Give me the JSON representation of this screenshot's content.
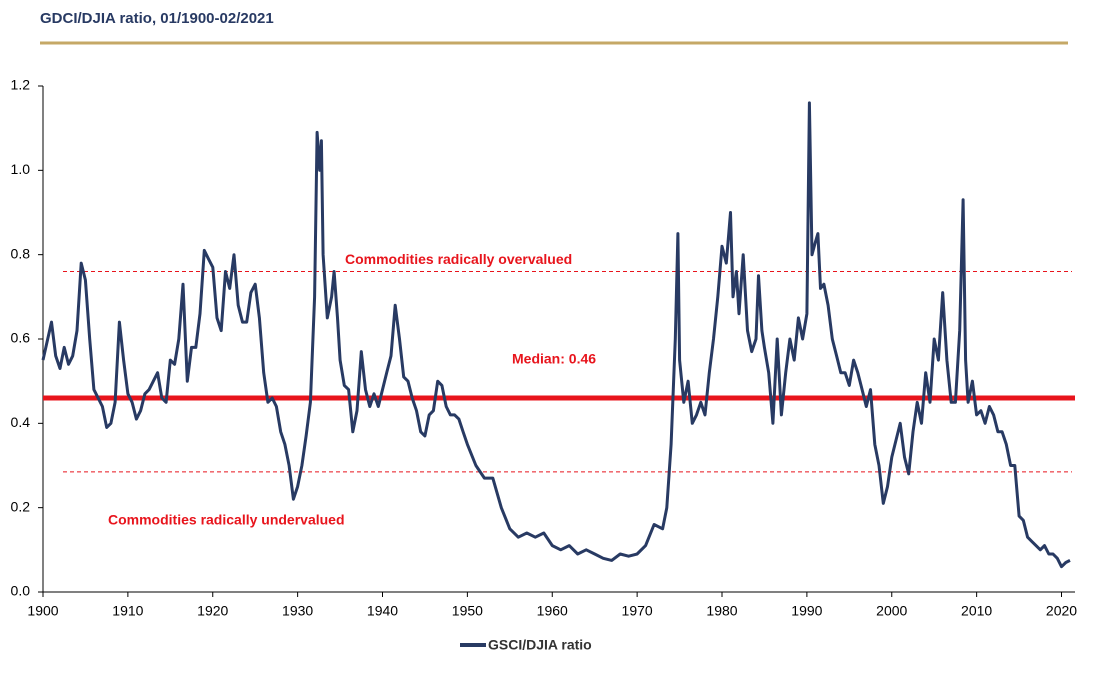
{
  "chart_data": {
    "type": "line",
    "title": "GDCI/DJIA ratio, 01/1900-02/2021",
    "xlim": [
      1900,
      2021
    ],
    "ylim": [
      0,
      1.2
    ],
    "xticks": [
      1900,
      1910,
      1920,
      1930,
      1940,
      1950,
      1960,
      1970,
      1980,
      1990,
      2000,
      2010,
      2020
    ],
    "yticks": [
      {
        "value": 0,
        "label": "0.0"
      },
      0.2,
      0.4,
      0.6,
      0.8,
      {
        "value": 1,
        "label": "1.0"
      },
      1.2
    ],
    "reference_lines": [
      {
        "value": 0.76,
        "label": "Commodities radically overvalued",
        "color": "#e8141c",
        "style": "dashed"
      },
      {
        "value": 0.46,
        "label": "Median: 0.46",
        "color": "#e8141c",
        "style": "solid"
      },
      {
        "value": 0.285,
        "label": "Commodities radically undervalued",
        "color": "#e8141c",
        "style": "dashed"
      }
    ],
    "x": [
      1900,
      1901,
      1901.5,
      1902,
      1902.5,
      1903,
      1903.5,
      1904,
      1904.5,
      1905,
      1905.5,
      1906,
      1907,
      1907.5,
      1908,
      1908.5,
      1909,
      1909.5,
      1910,
      1910.5,
      1911,
      1911.5,
      1912,
      1912.5,
      1913,
      1913.5,
      1914,
      1914.5,
      1915,
      1915.5,
      1916,
      1916.5,
      1917,
      1917.5,
      1918,
      1918.5,
      1919,
      1919.5,
      1920,
      1920.5,
      1921,
      1921.5,
      1922,
      1922.5,
      1923,
      1923.5,
      1924,
      1924.5,
      1925,
      1925.5,
      1926,
      1926.5,
      1927,
      1927.5,
      1928,
      1928.5,
      1929,
      1929.5,
      1930,
      1930.5,
      1931,
      1931.5,
      1932,
      1932.3,
      1932.6,
      1932.8,
      1933,
      1933.5,
      1934,
      1934.3,
      1934.7,
      1935,
      1935.5,
      1936,
      1936.5,
      1937,
      1937.5,
      1938,
      1938.5,
      1939,
      1939.5,
      1940,
      1940.5,
      1941,
      1941.5,
      1942,
      1942.5,
      1943,
      1943.5,
      1944,
      1944.5,
      1945,
      1945.5,
      1946,
      1946.5,
      1947,
      1947.5,
      1948,
      1948.5,
      1949,
      1949.5,
      1950,
      1951,
      1952,
      1953,
      1954,
      1955,
      1956,
      1957,
      1958,
      1959,
      1960,
      1961,
      1962,
      1963,
      1964,
      1965,
      1966,
      1967,
      1968,
      1969,
      1970,
      1971,
      1972,
      1973,
      1973.5,
      1974,
      1974.5,
      1974.8,
      1975,
      1975.5,
      1976,
      1976.5,
      1977,
      1977.5,
      1978,
      1978.5,
      1979,
      1979.5,
      1980,
      1980.5,
      1981,
      1981.3,
      1981.7,
      1982,
      1982.5,
      1983,
      1983.5,
      1984,
      1984.3,
      1984.7,
      1985,
      1985.5,
      1986,
      1986.5,
      1987,
      1987.5,
      1988,
      1988.5,
      1989,
      1989.5,
      1990,
      1990.3,
      1990.6,
      1991,
      1991.3,
      1991.6,
      1992,
      1992.5,
      1993,
      1993.5,
      1994,
      1994.5,
      1995,
      1995.5,
      1996,
      1996.5,
      1997,
      1997.5,
      1998,
      1998.5,
      1999,
      1999.5,
      2000,
      2000.5,
      2001,
      2001.5,
      2002,
      2002.5,
      2003,
      2003.5,
      2004,
      2004.5,
      2005,
      2005.5,
      2006,
      2006.5,
      2007,
      2007.5,
      2008,
      2008.4,
      2008.7,
      2009,
      2009.5,
      2010,
      2010.5,
      2011,
      2011.5,
      2012,
      2012.5,
      2013,
      2013.5,
      2014,
      2014.5,
      2015,
      2015.5,
      2016,
      2016.5,
      2017,
      2017.5,
      2018,
      2018.5,
      2019,
      2019.5,
      2020,
      2020.5,
      2021
    ],
    "series": [
      {
        "name": "GSCI/DJIA ratio",
        "color": "#283a63",
        "values": [
          0.55,
          0.64,
          0.56,
          0.53,
          0.58,
          0.54,
          0.56,
          0.62,
          0.78,
          0.74,
          0.6,
          0.48,
          0.44,
          0.39,
          0.4,
          0.45,
          0.64,
          0.55,
          0.47,
          0.45,
          0.41,
          0.43,
          0.47,
          0.48,
          0.5,
          0.52,
          0.46,
          0.45,
          0.55,
          0.54,
          0.6,
          0.73,
          0.5,
          0.58,
          0.58,
          0.66,
          0.81,
          0.79,
          0.77,
          0.65,
          0.62,
          0.76,
          0.72,
          0.8,
          0.68,
          0.64,
          0.64,
          0.71,
          0.73,
          0.65,
          0.52,
          0.45,
          0.46,
          0.44,
          0.38,
          0.35,
          0.3,
          0.22,
          0.25,
          0.3,
          0.37,
          0.45,
          0.7,
          1.09,
          1.0,
          1.07,
          0.8,
          0.65,
          0.7,
          0.76,
          0.65,
          0.55,
          0.49,
          0.48,
          0.38,
          0.43,
          0.57,
          0.48,
          0.44,
          0.47,
          0.44,
          0.48,
          0.52,
          0.56,
          0.68,
          0.6,
          0.51,
          0.5,
          0.46,
          0.43,
          0.38,
          0.37,
          0.42,
          0.43,
          0.5,
          0.49,
          0.44,
          0.42,
          0.42,
          0.41,
          0.38,
          0.35,
          0.3,
          0.27,
          0.27,
          0.2,
          0.15,
          0.13,
          0.14,
          0.13,
          0.14,
          0.11,
          0.1,
          0.11,
          0.09,
          0.1,
          0.09,
          0.08,
          0.075,
          0.09,
          0.085,
          0.09,
          0.11,
          0.16,
          0.15,
          0.2,
          0.35,
          0.6,
          0.85,
          0.55,
          0.45,
          0.5,
          0.4,
          0.42,
          0.45,
          0.42,
          0.52,
          0.6,
          0.7,
          0.82,
          0.78,
          0.9,
          0.7,
          0.76,
          0.66,
          0.8,
          0.62,
          0.57,
          0.6,
          0.75,
          0.62,
          0.58,
          0.52,
          0.4,
          0.6,
          0.42,
          0.52,
          0.6,
          0.55,
          0.65,
          0.6,
          0.66,
          1.16,
          0.8,
          0.83,
          0.85,
          0.72,
          0.73,
          0.68,
          0.6,
          0.56,
          0.52,
          0.52,
          0.49,
          0.55,
          0.52,
          0.48,
          0.44,
          0.48,
          0.35,
          0.3,
          0.21,
          0.25,
          0.32,
          0.36,
          0.4,
          0.32,
          0.28,
          0.38,
          0.45,
          0.4,
          0.52,
          0.45,
          0.6,
          0.55,
          0.71,
          0.55,
          0.45,
          0.45,
          0.62,
          0.93,
          0.55,
          0.45,
          0.5,
          0.42,
          0.43,
          0.4,
          0.44,
          0.42,
          0.38,
          0.38,
          0.35,
          0.3,
          0.3,
          0.18,
          0.17,
          0.13,
          0.12,
          0.11,
          0.1,
          0.11,
          0.09,
          0.09,
          0.08,
          0.06,
          0.07,
          0.075
        ]
      }
    ]
  }
}
